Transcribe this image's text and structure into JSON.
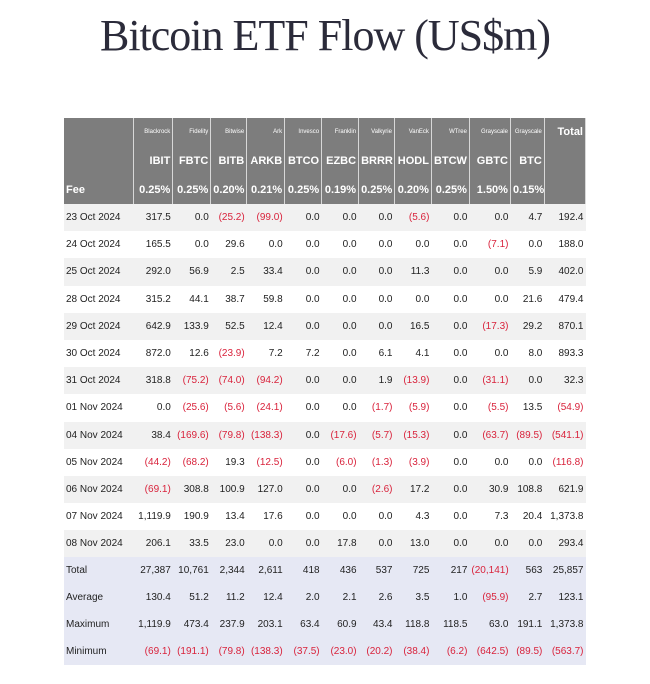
{
  "title": "Bitcoin ETF Flow (US$m)",
  "issuers": [
    "Blackrock",
    "Fidelity",
    "Bitwise",
    "Ark",
    "Invesco",
    "Franklin",
    "Valkyrie",
    "VanEck",
    "WTree",
    "Grayscale",
    "Grayscale"
  ],
  "total_label": "Total",
  "tickers": [
    "IBIT",
    "FBTC",
    "BITB",
    "ARKB",
    "BTCO",
    "EZBC",
    "BRRR",
    "HODL",
    "BTCW",
    "GBTC",
    "BTC"
  ],
  "fee_label": "Fee",
  "fees": [
    "0.25%",
    "0.25%",
    "0.20%",
    "0.21%",
    "0.25%",
    "0.19%",
    "0.25%",
    "0.20%",
    "0.25%",
    "1.50%",
    "0.15%"
  ],
  "rows": [
    {
      "date": "23 Oct 2024",
      "values": [
        "317.5",
        "0.0",
        "(25.2)",
        "(99.0)",
        "0.0",
        "0.0",
        "0.0",
        "(5.6)",
        "0.0",
        "0.0",
        "4.7"
      ],
      "total": "192.4"
    },
    {
      "date": "24 Oct 2024",
      "values": [
        "165.5",
        "0.0",
        "29.6",
        "0.0",
        "0.0",
        "0.0",
        "0.0",
        "0.0",
        "0.0",
        "(7.1)",
        "0.0"
      ],
      "total": "188.0"
    },
    {
      "date": "25 Oct 2024",
      "values": [
        "292.0",
        "56.9",
        "2.5",
        "33.4",
        "0.0",
        "0.0",
        "0.0",
        "11.3",
        "0.0",
        "0.0",
        "5.9"
      ],
      "total": "402.0"
    },
    {
      "date": "28 Oct 2024",
      "values": [
        "315.2",
        "44.1",
        "38.7",
        "59.8",
        "0.0",
        "0.0",
        "0.0",
        "0.0",
        "0.0",
        "0.0",
        "21.6"
      ],
      "total": "479.4"
    },
    {
      "date": "29 Oct 2024",
      "values": [
        "642.9",
        "133.9",
        "52.5",
        "12.4",
        "0.0",
        "0.0",
        "0.0",
        "16.5",
        "0.0",
        "(17.3)",
        "29.2"
      ],
      "total": "870.1"
    },
    {
      "date": "30 Oct 2024",
      "values": [
        "872.0",
        "12.6",
        "(23.9)",
        "7.2",
        "7.2",
        "0.0",
        "6.1",
        "4.1",
        "0.0",
        "0.0",
        "8.0"
      ],
      "total": "893.3"
    },
    {
      "date": "31 Oct 2024",
      "values": [
        "318.8",
        "(75.2)",
        "(74.0)",
        "(94.2)",
        "0.0",
        "0.0",
        "1.9",
        "(13.9)",
        "0.0",
        "(31.1)",
        "0.0"
      ],
      "total": "32.3"
    },
    {
      "date": "01 Nov 2024",
      "values": [
        "0.0",
        "(25.6)",
        "(5.6)",
        "(24.1)",
        "0.0",
        "0.0",
        "(1.7)",
        "(5.9)",
        "0.0",
        "(5.5)",
        "13.5"
      ],
      "total": "(54.9)"
    },
    {
      "date": "04 Nov 2024",
      "values": [
        "38.4",
        "(169.6)",
        "(79.8)",
        "(138.3)",
        "0.0",
        "(17.6)",
        "(5.7)",
        "(15.3)",
        "0.0",
        "(63.7)",
        "(89.5)"
      ],
      "total": "(541.1)"
    },
    {
      "date": "05 Nov 2024",
      "values": [
        "(44.2)",
        "(68.2)",
        "19.3",
        "(12.5)",
        "0.0",
        "(6.0)",
        "(1.3)",
        "(3.9)",
        "0.0",
        "0.0",
        "0.0"
      ],
      "total": "(116.8)"
    },
    {
      "date": "06 Nov 2024",
      "values": [
        "(69.1)",
        "308.8",
        "100.9",
        "127.0",
        "0.0",
        "0.0",
        "(2.6)",
        "17.2",
        "0.0",
        "30.9",
        "108.8"
      ],
      "total": "621.9"
    },
    {
      "date": "07 Nov 2024",
      "values": [
        "1,119.9",
        "190.9",
        "13.4",
        "17.6",
        "0.0",
        "0.0",
        "0.0",
        "4.3",
        "0.0",
        "7.3",
        "20.4"
      ],
      "total": "1,373.8"
    },
    {
      "date": "08 Nov 2024",
      "values": [
        "206.1",
        "33.5",
        "23.0",
        "0.0",
        "0.0",
        "17.8",
        "0.0",
        "13.0",
        "0.0",
        "0.0",
        "0.0"
      ],
      "total": "293.4"
    }
  ],
  "summary": [
    {
      "label": "Total",
      "values": [
        "27,387",
        "10,761",
        "2,344",
        "2,611",
        "418",
        "436",
        "537",
        "725",
        "217",
        "(20,141)",
        "563"
      ],
      "total": "25,857"
    },
    {
      "label": "Average",
      "values": [
        "130.4",
        "51.2",
        "11.2",
        "12.4",
        "2.0",
        "2.1",
        "2.6",
        "3.5",
        "1.0",
        "(95.9)",
        "2.7"
      ],
      "total": "123.1"
    },
    {
      "label": "Maximum",
      "values": [
        "1,119.9",
        "473.4",
        "237.9",
        "203.1",
        "63.4",
        "60.9",
        "43.4",
        "118.8",
        "118.5",
        "63.0",
        "191.1"
      ],
      "total": "1,373.8"
    },
    {
      "label": "Minimum",
      "values": [
        "(69.1)",
        "(191.1)",
        "(79.8)",
        "(138.3)",
        "(37.5)",
        "(23.0)",
        "(20.2)",
        "(38.4)",
        "(6.2)",
        "(642.5)",
        "(89.5)"
      ],
      "total": "(563.7)"
    }
  ]
}
